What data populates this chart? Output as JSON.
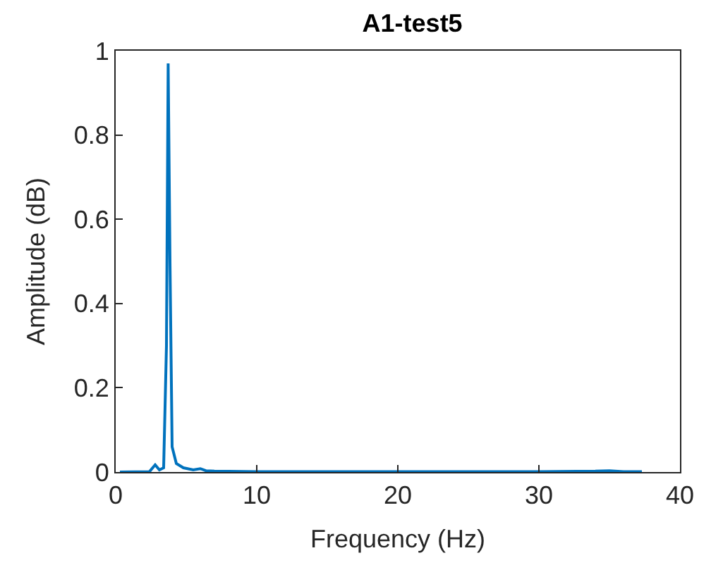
{
  "chart_data": {
    "type": "line",
    "title": "A1-test5",
    "xlabel": "Frequency (Hz)",
    "ylabel": "Amplitude (dB)",
    "x": [
      0.3,
      2.4,
      2.8,
      3.1,
      3.4,
      3.6,
      3.72,
      3.85,
      4.0,
      4.3,
      4.8,
      5.5,
      6.0,
      6.4,
      7,
      10,
      20,
      30,
      34,
      35,
      36,
      37.3
    ],
    "series": [
      {
        "color": "#0072bd",
        "values": [
          0,
          0.001,
          0.017,
          0.005,
          0.01,
          0.3,
          0.97,
          0.5,
          0.06,
          0.02,
          0.01,
          0.005,
          0.008,
          0.003,
          0.002,
          0.001,
          0.001,
          0.001,
          0.002,
          0.003,
          0.001,
          0.001
        ]
      }
    ],
    "xlim": [
      0,
      40
    ],
    "xticks": [
      0,
      10,
      20,
      30,
      40
    ],
    "ylim": [
      0,
      1
    ],
    "yticks": [
      0,
      0.2,
      0.4,
      0.6,
      0.8,
      1
    ],
    "marker": "none",
    "line_style": "solid"
  }
}
